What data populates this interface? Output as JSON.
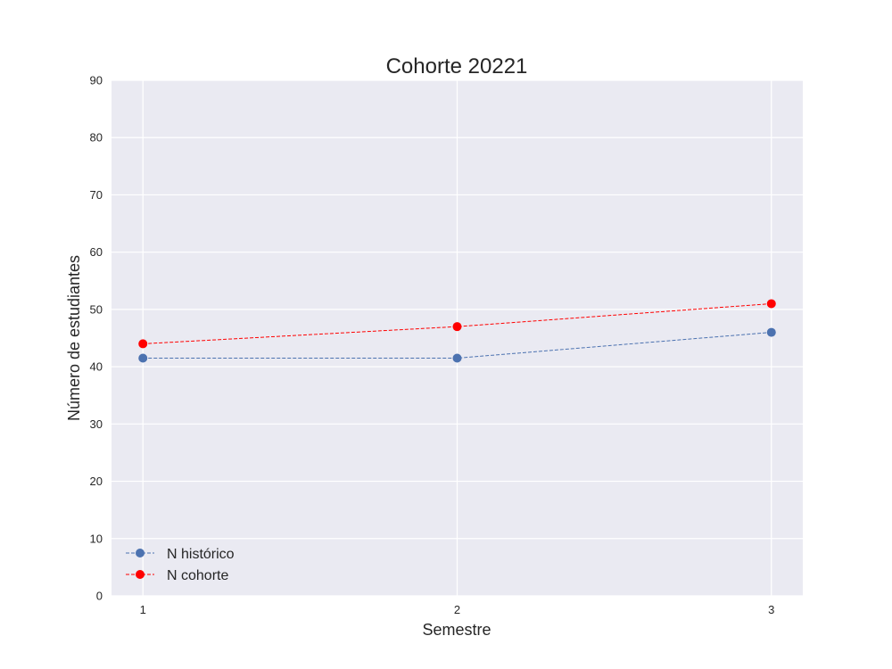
{
  "chart_data": {
    "type": "line",
    "title": "Cohorte 20221",
    "xlabel": "Semestre",
    "ylabel": "Número de estudiantes",
    "x": [
      1,
      2,
      3
    ],
    "xticks": [
      1,
      2,
      3
    ],
    "xlim": [
      0.9,
      3.1
    ],
    "ylim": [
      0,
      90
    ],
    "yticks": [
      0,
      10,
      20,
      30,
      40,
      50,
      60,
      70,
      80,
      90
    ],
    "grid": true,
    "legend_position": "lower-left",
    "series": [
      {
        "name": "N histórico",
        "values": [
          41.5,
          41.5,
          46
        ],
        "color": "#4C72B0",
        "line_style": "dashed",
        "marker": "circle"
      },
      {
        "name": "N cohorte",
        "values": [
          44,
          47,
          51
        ],
        "color": "#FF0000",
        "line_style": "dashed",
        "marker": "circle"
      }
    ],
    "colors": {
      "plot_background": "#EAEAF2",
      "grid": "#FFFFFF",
      "text": "#262626"
    }
  }
}
